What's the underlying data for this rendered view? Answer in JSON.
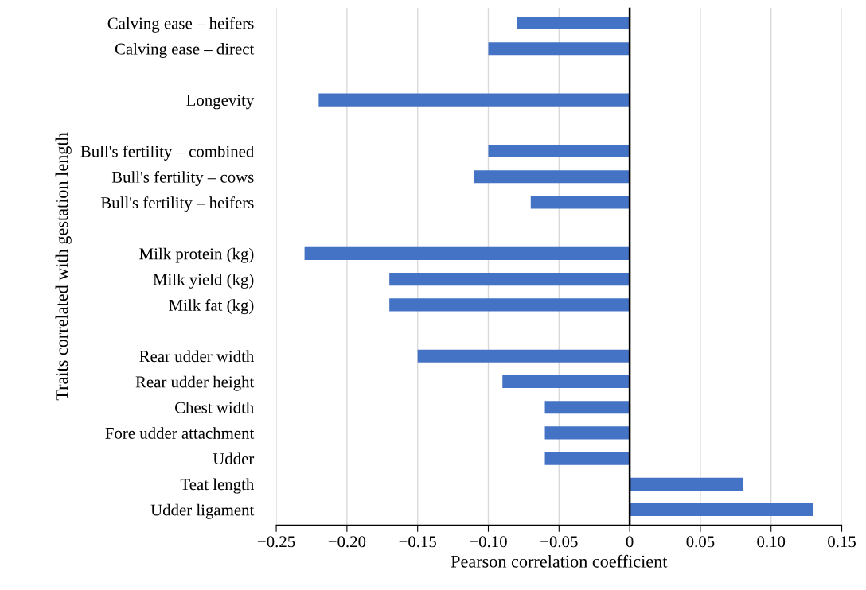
{
  "chart_data": {
    "type": "bar",
    "orientation": "horizontal",
    "xlabel": "Pearson correlation coefficient",
    "ylabel": "Traits correlated with gestation length",
    "categories": [
      "Calving ease – heifers",
      "Calving ease – direct",
      null,
      "Longevity",
      null,
      "Bull's fertility – combined",
      "Bull's fertility – cows",
      "Bull's fertility – heifers",
      null,
      "Milk protein (kg)",
      "Milk yield (kg)",
      "Milk fat (kg)",
      null,
      "Rear udder width",
      "Rear udder height",
      "Chest width",
      "Fore udder attachment",
      "Udder",
      "Teat length",
      "Udder ligament"
    ],
    "values": [
      -0.08,
      -0.1,
      null,
      -0.22,
      null,
      -0.1,
      -0.11,
      -0.07,
      null,
      -0.23,
      -0.17,
      -0.17,
      null,
      -0.15,
      -0.09,
      -0.06,
      -0.06,
      -0.06,
      0.08,
      0.13
    ],
    "color": "#4472c4",
    "xlim": [
      -0.25,
      0.15
    ],
    "xticks": [
      {
        "value": -0.25,
        "label": "−0.25"
      },
      {
        "value": -0.2,
        "label": "−0.20"
      },
      {
        "value": -0.15,
        "label": "−0.15"
      },
      {
        "value": -0.1,
        "label": "−0.10"
      },
      {
        "value": -0.05,
        "label": "−0.05"
      },
      0,
      {
        "value": 0.05,
        "label": "0.05"
      },
      {
        "value": 0.1,
        "label": "0.10"
      },
      {
        "value": 0.15,
        "label": "0.15"
      }
    ],
    "ref_lines": [
      {
        "axis": "x",
        "value": 0,
        "color": "#000000"
      }
    ],
    "grid": "x"
  }
}
